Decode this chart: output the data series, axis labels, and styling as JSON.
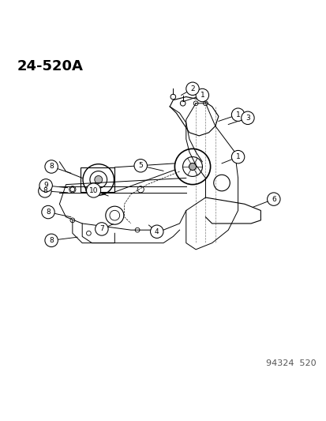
{
  "title": "24-520A",
  "footer": "94324  520",
  "bg_color": "#ffffff",
  "line_color": "#000000",
  "title_fontsize": 13,
  "footer_fontsize": 8,
  "fig_width": 4.14,
  "fig_height": 5.33,
  "dpi": 100
}
